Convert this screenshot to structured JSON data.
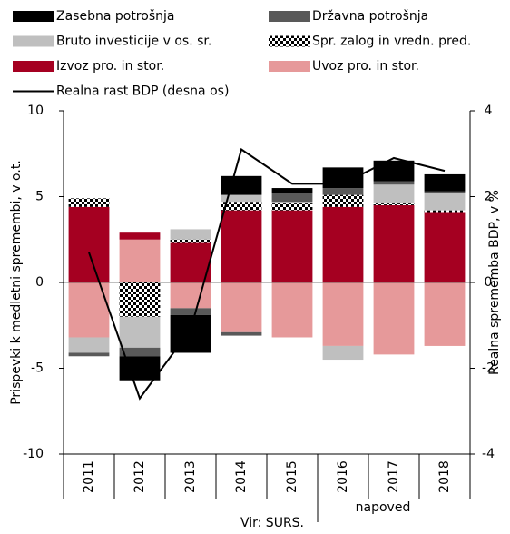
{
  "chart_data": {
    "type": "bar",
    "stacked": true,
    "categories": [
      "2011",
      "2012",
      "2013",
      "2014",
      "2015",
      "2016",
      "2017",
      "2018"
    ],
    "series": [
      {
        "name": "Zasebna potrošnja",
        "color": "#000000",
        "values": [
          0,
          -1.4,
          -2.2,
          1.1,
          0.3,
          1.2,
          1.2,
          1.0
        ]
      },
      {
        "name": "Državna potrošnja",
        "color": "#595959",
        "values": [
          -0.2,
          -0.5,
          -0.4,
          -0.2,
          0.5,
          0.4,
          0.2,
          0.1
        ]
      },
      {
        "name": "Bruto investicije v os. sr.",
        "color": "#bfbfbf",
        "values": [
          -0.9,
          -1.8,
          0.6,
          0.4,
          0.1,
          -0.8,
          1.1,
          1.0
        ]
      },
      {
        "name": "Spr. zalog in vredn. pred.",
        "color": "#000000",
        "hatch": "checker",
        "values": [
          0.5,
          -2.0,
          0.2,
          0.5,
          0.4,
          0.7,
          0.1,
          0.1
        ]
      },
      {
        "name": "Izvoz pro. in stor.",
        "color": "#a50021",
        "values": [
          4.4,
          0.4,
          2.3,
          4.2,
          4.2,
          4.4,
          4.5,
          4.1
        ]
      },
      {
        "name": "Uvoz pro. in stor.",
        "color": "#e6999a",
        "values": [
          -3.2,
          2.5,
          -1.5,
          -2.9,
          -3.2,
          -3.7,
          -4.2,
          -3.7
        ]
      },
      {
        "name": "Realna rast BDP (desna os)",
        "color": "#000000",
        "type": "line",
        "axis": "y2",
        "values": [
          0.7,
          -2.7,
          -1.1,
          3.1,
          2.3,
          2.3,
          2.9,
          2.6
        ]
      }
    ],
    "ylim": [
      -10,
      10
    ],
    "yticks": [
      -10,
      -5,
      0,
      5,
      10
    ],
    "y2lim": [
      -4,
      4
    ],
    "y2ticks": [
      -4,
      -2,
      0,
      2,
      4
    ],
    "ylabel": "Prispevki k medletni spremembi, v o.t.",
    "y2label": "Realna sprememba BDP, v %",
    "annotations": [
      "napoved",
      "Vir: SURS."
    ]
  }
}
